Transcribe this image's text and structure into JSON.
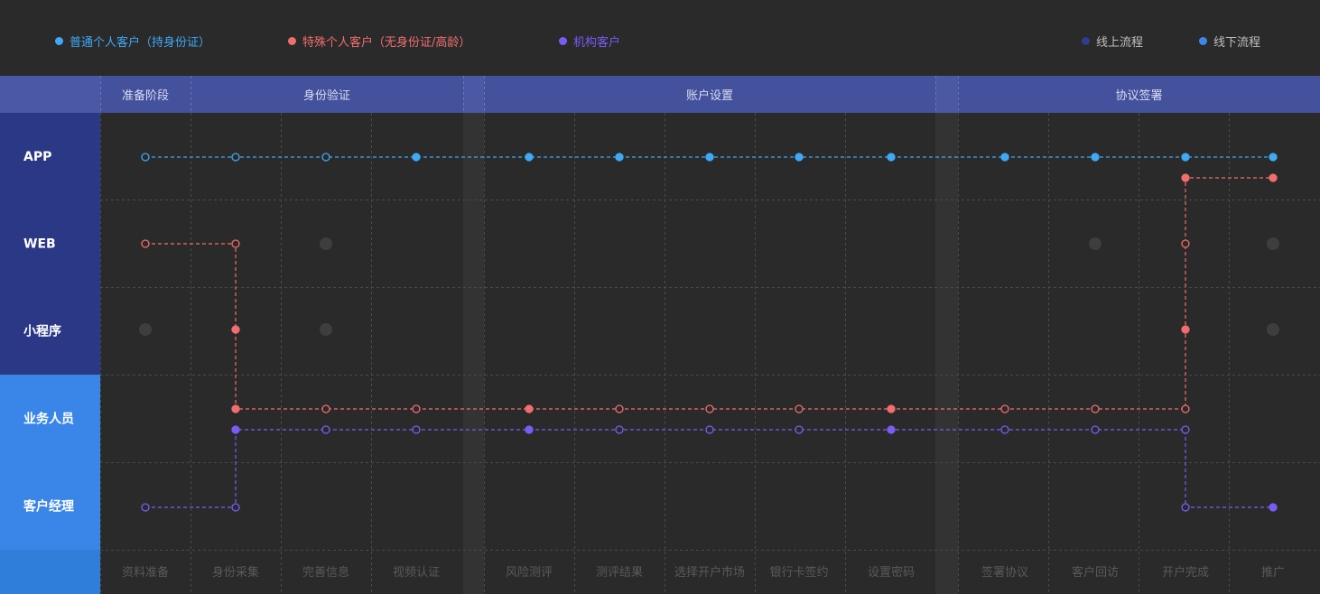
{
  "legend": {
    "customers": [
      {
        "label": "普通个人客户（持身份证）",
        "color": "#3ea9f5"
      },
      {
        "label": "特殊个人客户（无身份证/高龄）",
        "color": "#f26d6d"
      },
      {
        "label": "机构客户",
        "color": "#7a5cf5"
      }
    ],
    "process_types": [
      {
        "label": "线上流程",
        "color": "#2f3d8f"
      },
      {
        "label": "线下流程",
        "color": "#3d86f0"
      }
    ]
  },
  "stages": [
    "准备阶段",
    "身份验证",
    "账户设置",
    "协议签署"
  ],
  "channels": [
    {
      "label": "APP",
      "type": "online"
    },
    {
      "label": "WEB",
      "type": "online"
    },
    {
      "label": "小程序",
      "type": "online"
    },
    {
      "label": "业务人员",
      "type": "offline"
    },
    {
      "label": "客户经理",
      "type": "offline"
    }
  ],
  "steps": [
    "资料准备",
    "身份采集",
    "完善信息",
    "视频认证",
    "风险测评",
    "测评结果",
    "选择开户市场",
    "银行卡签约",
    "设置密码",
    "签署协议",
    "客户回访",
    "开户完成",
    "推广"
  ],
  "colors": {
    "online_channel": "#2b3885",
    "offline_channel": "#3a86e8",
    "header_band": "#44529e",
    "inactive_dot": "#3e3e3e"
  },
  "journeys": [
    {
      "customer": "普通个人客户（持身份证）",
      "color": "#3ea9f5",
      "path": [
        {
          "step": "资料准备",
          "channel": "APP",
          "filled": false
        },
        {
          "step": "身份采集",
          "channel": "APP",
          "filled": false
        },
        {
          "step": "完善信息",
          "channel": "APP",
          "filled": false
        },
        {
          "step": "视频认证",
          "channel": "APP",
          "filled": true
        },
        {
          "step": "风险测评",
          "channel": "APP",
          "filled": true
        },
        {
          "step": "测评结果",
          "channel": "APP",
          "filled": true
        },
        {
          "step": "选择开户市场",
          "channel": "APP",
          "filled": true
        },
        {
          "step": "银行卡签约",
          "channel": "APP",
          "filled": true
        },
        {
          "step": "设置密码",
          "channel": "APP",
          "filled": true
        },
        {
          "step": "签署协议",
          "channel": "APP",
          "filled": true
        },
        {
          "step": "客户回访",
          "channel": "APP",
          "filled": true
        },
        {
          "step": "开户完成",
          "channel": "APP",
          "filled": true
        },
        {
          "step": "推广",
          "channel": "APP",
          "filled": true
        }
      ]
    },
    {
      "customer": "特殊个人客户（无身份证/高龄）",
      "color": "#f26d6d",
      "path": [
        {
          "step": "资料准备",
          "channel": "WEB",
          "filled": false
        },
        {
          "step": "身份采集",
          "channel": "WEB",
          "filled": false
        },
        {
          "step": "身份采集",
          "channel": "小程序",
          "filled": true
        },
        {
          "step": "身份采集",
          "channel": "业务人员",
          "filled": true
        },
        {
          "step": "完善信息",
          "channel": "业务人员",
          "filled": false
        },
        {
          "step": "视频认证",
          "channel": "业务人员",
          "filled": false
        },
        {
          "step": "风险测评",
          "channel": "业务人员",
          "filled": true
        },
        {
          "step": "测评结果",
          "channel": "业务人员",
          "filled": false
        },
        {
          "step": "选择开户市场",
          "channel": "业务人员",
          "filled": false
        },
        {
          "step": "银行卡签约",
          "channel": "业务人员",
          "filled": false
        },
        {
          "step": "设置密码",
          "channel": "业务人员",
          "filled": true
        },
        {
          "step": "签署协议",
          "channel": "业务人员",
          "filled": false
        },
        {
          "step": "客户回访",
          "channel": "业务人员",
          "filled": false
        },
        {
          "step": "开户完成",
          "channel": "业务人员",
          "filled": false
        },
        {
          "step": "开户完成",
          "channel": "小程序",
          "filled": true
        },
        {
          "step": "开户完成",
          "channel": "WEB",
          "filled": false
        },
        {
          "step": "开户完成",
          "channel": "APP",
          "filled": true
        },
        {
          "step": "推广",
          "channel": "APP",
          "filled": true
        }
      ]
    },
    {
      "customer": "机构客户",
      "color": "#7a5cf5",
      "path": [
        {
          "step": "资料准备",
          "channel": "客户经理",
          "filled": false
        },
        {
          "step": "身份采集",
          "channel": "客户经理",
          "filled": false
        },
        {
          "step": "身份采集",
          "channel": "业务人员",
          "filled": true
        },
        {
          "step": "完善信息",
          "channel": "业务人员",
          "filled": false
        },
        {
          "step": "视频认证",
          "channel": "业务人员",
          "filled": false
        },
        {
          "step": "风险测评",
          "channel": "业务人员",
          "filled": true
        },
        {
          "step": "测评结果",
          "channel": "业务人员",
          "filled": false
        },
        {
          "step": "选择开户市场",
          "channel": "业务人员",
          "filled": false
        },
        {
          "step": "银行卡签约",
          "channel": "业务人员",
          "filled": false
        },
        {
          "step": "设置密码",
          "channel": "业务人员",
          "filled": true
        },
        {
          "step": "签署协议",
          "channel": "业务人员",
          "filled": false
        },
        {
          "step": "客户回访",
          "channel": "业务人员",
          "filled": false
        },
        {
          "step": "开户完成",
          "channel": "业务人员",
          "filled": false
        },
        {
          "step": "开户完成",
          "channel": "客户经理",
          "filled": false
        },
        {
          "step": "推广",
          "channel": "客户经理",
          "filled": true
        }
      ]
    }
  ],
  "inactive_nodes": [
    {
      "step": "完善信息",
      "channel": "WEB"
    },
    {
      "step": "资料准备",
      "channel": "小程序"
    },
    {
      "step": "完善信息",
      "channel": "小程序"
    },
    {
      "step": "客户回访",
      "channel": "WEB"
    },
    {
      "step": "推广",
      "channel": "WEB"
    },
    {
      "step": "推广",
      "channel": "小程序"
    }
  ]
}
